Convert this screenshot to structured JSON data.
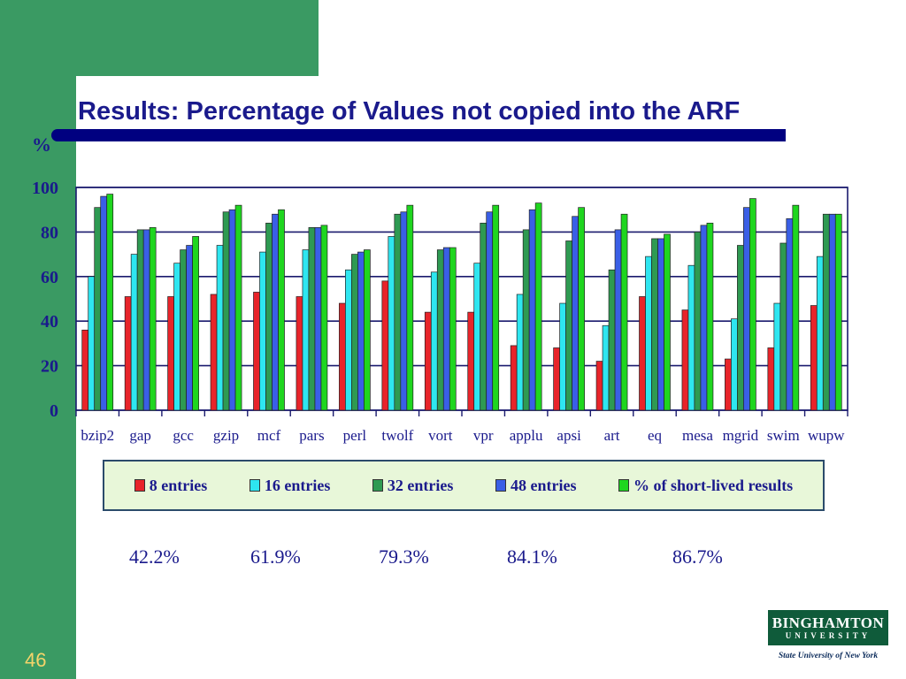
{
  "slide": {
    "title": "Results: Percentage of Values not copied into the ARF",
    "page_number": "46",
    "averages": [
      "42.2%",
      "61.9%",
      "79.3%",
      "84.1%",
      "86.7%"
    ]
  },
  "logo": {
    "name": "BINGHAMTON",
    "sub": "UNIVERSITY",
    "tagline": "State University of New York"
  },
  "colors": {
    "background_green": "#3a9a63",
    "title": "#1a1a8c",
    "title_bar": "#000080",
    "page_number": "#f5d46a",
    "legend_bg": "#e8f7d9"
  },
  "chart_data": {
    "type": "bar",
    "title": "",
    "ylabel": "%",
    "xlabel": "",
    "ylim": [
      0,
      100
    ],
    "yticks": [
      0,
      20,
      40,
      60,
      80,
      100
    ],
    "grid": true,
    "legend_position": "bottom",
    "categories": [
      "bzip2",
      "gap",
      "gcc",
      "gzip",
      "mcf",
      "pars",
      "perl",
      "twolf",
      "vort",
      "vpr",
      "applu",
      "apsi",
      "art",
      "eq",
      "mesa",
      "mgrid",
      "swim",
      "wupw"
    ],
    "series": [
      {
        "name": "8 entries",
        "color": "#e8242a",
        "values": [
          36,
          51,
          51,
          52,
          53,
          51,
          48,
          58,
          44,
          44,
          29,
          28,
          22,
          51,
          45,
          23,
          28,
          47
        ]
      },
      {
        "name": "16 entries",
        "color": "#2ee6f0",
        "values": [
          60,
          70,
          66,
          74,
          71,
          72,
          63,
          78,
          62,
          66,
          52,
          48,
          38,
          69,
          65,
          41,
          48,
          69
        ]
      },
      {
        "name": "32 entries",
        "color": "#2e9a52",
        "values": [
          91,
          81,
          72,
          89,
          84,
          82,
          70,
          88,
          72,
          84,
          81,
          76,
          63,
          77,
          80,
          74,
          75,
          88
        ]
      },
      {
        "name": "48 entries",
        "color": "#3a5fe6",
        "values": [
          96,
          81,
          74,
          90,
          88,
          82,
          71,
          89,
          73,
          89,
          90,
          87,
          81,
          77,
          83,
          91,
          86,
          88
        ]
      },
      {
        "name": "% of short-lived results",
        "color": "#1fd61f",
        "values": [
          97,
          82,
          78,
          92,
          90,
          83,
          72,
          92,
          73,
          92,
          93,
          91,
          88,
          79,
          84,
          95,
          92,
          88
        ]
      }
    ]
  }
}
